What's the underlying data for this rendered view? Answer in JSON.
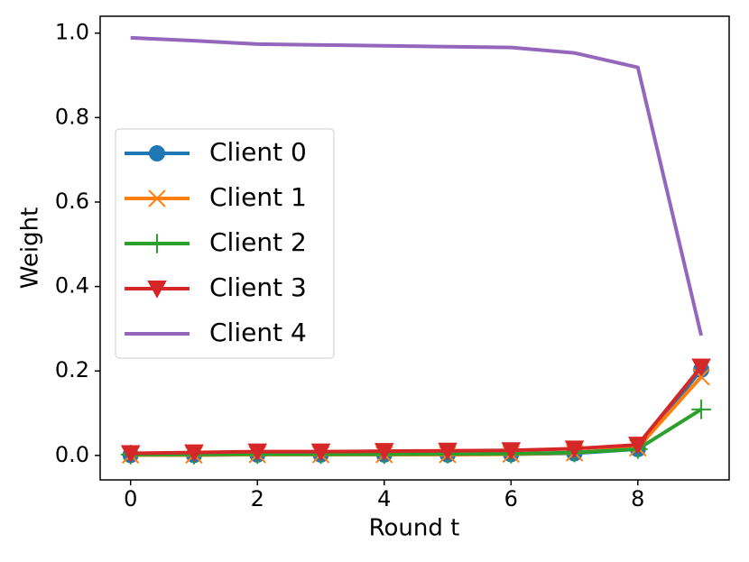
{
  "chart_data": {
    "type": "line",
    "xlabel": "Round t",
    "ylabel": "Weight",
    "x": [
      0,
      1,
      2,
      3,
      4,
      5,
      6,
      7,
      8,
      9
    ],
    "series": [
      {
        "name": "Client 0",
        "color": "#1f77b4",
        "marker": "o",
        "values": [
          0.001,
          0.001,
          0.002,
          0.002,
          0.002,
          0.002,
          0.003,
          0.005,
          0.015,
          0.203
        ]
      },
      {
        "name": "Client 1",
        "color": "#ff7f0e",
        "marker": "x",
        "values": [
          0.001,
          0.001,
          0.002,
          0.002,
          0.002,
          0.002,
          0.003,
          0.006,
          0.018,
          0.186
        ]
      },
      {
        "name": "Client 2",
        "color": "#2ca02c",
        "marker": "+",
        "values": [
          0.002,
          0.002,
          0.003,
          0.003,
          0.003,
          0.004,
          0.004,
          0.007,
          0.015,
          0.109
        ]
      },
      {
        "name": "Client 3",
        "color": "#d62728",
        "marker": "v",
        "values": [
          0.005,
          0.007,
          0.009,
          0.009,
          0.01,
          0.011,
          0.012,
          0.016,
          0.025,
          0.21
        ]
      },
      {
        "name": "Client 4",
        "color": "#9467bd",
        "marker": null,
        "values": [
          0.989,
          0.982,
          0.974,
          0.972,
          0.97,
          0.968,
          0.966,
          0.953,
          0.919,
          0.284
        ]
      }
    ],
    "xlim": [
      -0.48,
      9.44
    ],
    "ylim": [
      -0.058,
      1.04
    ],
    "xticks": [
      0,
      2,
      4,
      6,
      8
    ],
    "yticks": [
      {
        "value": 0,
        "label": "0.0"
      },
      {
        "value": 0.2,
        "label": "0.2"
      },
      {
        "value": 0.4,
        "label": "0.4"
      },
      {
        "value": 0.6,
        "label": "0.6"
      },
      {
        "value": 0.8,
        "label": "0.8"
      },
      {
        "value": 1,
        "label": "1.0"
      }
    ],
    "legend": "center left",
    "grid": false
  }
}
